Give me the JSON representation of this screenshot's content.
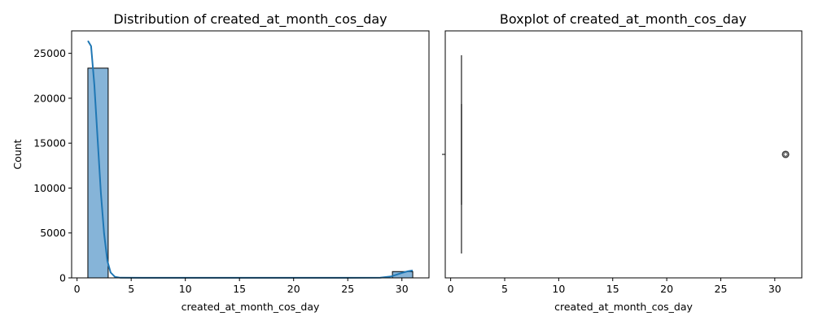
{
  "colors": {
    "bar_fill": "#86b4d8",
    "bar_edge": "#000000",
    "kde_line": "#1f77b4",
    "box_line": "#3f3f3f",
    "axes": "#000000"
  },
  "chart_data": [
    {
      "type": "bar",
      "subtype": "histogram-with-kde",
      "title": "Distribution of created_at_month_cos_day",
      "xlabel": "created_at_month_cos_day",
      "ylabel": "Count",
      "xlim": [
        -0.5,
        32.5
      ],
      "ylim": [
        0,
        27500
      ],
      "xticks": [
        0,
        5,
        10,
        15,
        20,
        25,
        30
      ],
      "yticks": [
        0,
        5000,
        10000,
        15000,
        20000,
        25000
      ],
      "bin_edges": [
        1.0,
        2.875,
        4.75,
        6.625,
        8.5,
        10.375,
        12.25,
        14.125,
        16.0,
        17.875,
        19.75,
        21.625,
        23.5,
        25.375,
        27.25,
        29.125,
        31.0
      ],
      "counts": [
        23350,
        0,
        0,
        0,
        0,
        0,
        0,
        0,
        0,
        0,
        0,
        0,
        0,
        0,
        0,
        700
      ],
      "kde": {
        "x": [
          1.0,
          1.3,
          1.6,
          1.9,
          2.2,
          2.5,
          2.8,
          3.1,
          3.5,
          4.0,
          6,
          10,
          15,
          20,
          25,
          28.0,
          29.0,
          29.5,
          30.0,
          30.5,
          31.0
        ],
        "y": [
          26400,
          25800,
          21500,
          15500,
          9500,
          4900,
          1900,
          600,
          120,
          20,
          10,
          10,
          10,
          10,
          10,
          30,
          150,
          350,
          550,
          720,
          820
        ]
      },
      "grid": false,
      "legend": "none"
    },
    {
      "type": "boxplot",
      "title": "Boxplot of created_at_month_cos_day",
      "xlabel": "created_at_month_cos_day",
      "ylabel": "",
      "xlim": [
        -0.5,
        32.5
      ],
      "xticks": [
        0,
        5,
        10,
        15,
        20,
        25,
        30
      ],
      "min": 1,
      "q1": 1,
      "median": 1,
      "q3": 1,
      "max": 1,
      "outliers": [
        31
      ],
      "grid": false,
      "legend": "none"
    }
  ]
}
